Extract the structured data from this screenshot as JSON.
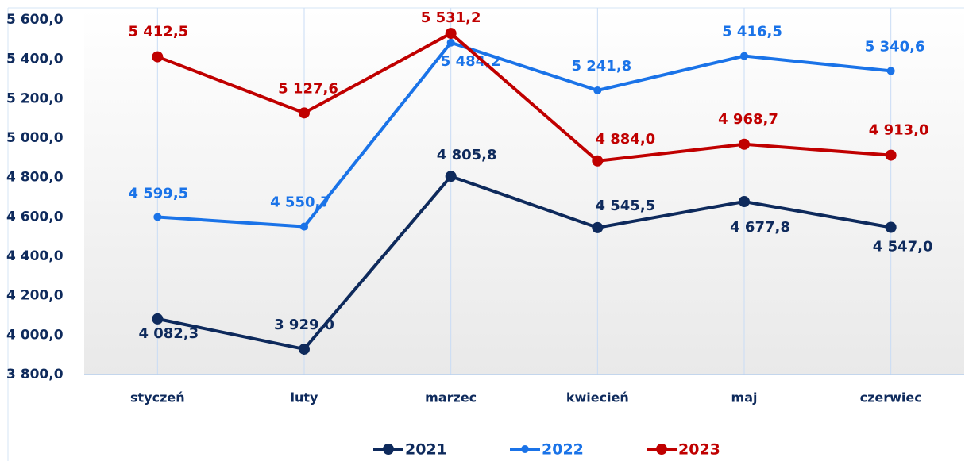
{
  "chart_data": {
    "type": "line",
    "categories": [
      "styczeń",
      "luty",
      "marzec",
      "kwiecień",
      "maj",
      "czerwiec"
    ],
    "series": [
      {
        "name": "2021",
        "color": "#0e2a5c",
        "values": [
          4082.3,
          3929.0,
          4805.8,
          4545.5,
          4677.8,
          4547.0
        ],
        "value_labels": [
          "4 082,3",
          "3 929,0",
          "4 805,8",
          "4 545,5",
          "4 677,8",
          "4 547,0"
        ]
      },
      {
        "name": "2022",
        "color": "#1a73e8",
        "values": [
          4599.5,
          4550.7,
          5484.2,
          5241.8,
          5416.5,
          5340.6
        ],
        "value_labels": [
          "4 599,5",
          "4 550,7",
          "5 484,2",
          "5 241,8",
          "5 416,5",
          "5 340,6"
        ]
      },
      {
        "name": "2023",
        "color": "#c00000",
        "values": [
          5412.5,
          5127.6,
          5531.2,
          4884.0,
          4968.7,
          4913.0
        ],
        "value_labels": [
          "5 412,5",
          "5 127,6",
          "5 531,2",
          "4 884,0",
          "4 968,7",
          "4 913,0"
        ]
      }
    ],
    "ylim": [
      3800,
      5600
    ],
    "yticks": [
      {
        "value": 3800,
        "label": "3 800,0"
      },
      {
        "value": 4000,
        "label": "4 000,0"
      },
      {
        "value": 4200,
        "label": "4 200,0"
      },
      {
        "value": 4400,
        "label": "4 400,0"
      },
      {
        "value": 4600,
        "label": "4 600,0"
      },
      {
        "value": 4800,
        "label": "4 800,0"
      },
      {
        "value": 5000,
        "label": "5 000,0"
      },
      {
        "value": 5200,
        "label": "5 200,0"
      },
      {
        "value": 5400,
        "label": "5 400,0"
      },
      {
        "value": 5600,
        "label": "5 600,0"
      }
    ],
    "grid": "x",
    "legend": "bottom"
  }
}
